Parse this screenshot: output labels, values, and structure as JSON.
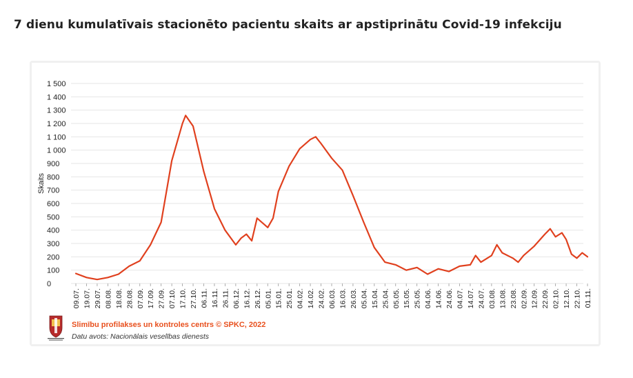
{
  "page_title": "7 dienu kumulatīvais stacionēto pacientu skaits ar apstiprinātu Covid-19 infekciju",
  "footer": {
    "org": "Slimību profilakses un kontroles centrs © SPKC, 2022",
    "source": "Datu avots: Nacionālais veselības dienests"
  },
  "colors": {
    "line": "#e0401e",
    "grid": "#e6e6e6",
    "accent": "#e8501e"
  },
  "chart_data": {
    "type": "line",
    "title": "",
    "xlabel": "",
    "ylabel": "Skaits",
    "ylim": [
      0,
      1500
    ],
    "grid": true,
    "yticks": [
      0,
      100,
      200,
      300,
      400,
      500,
      600,
      700,
      800,
      900,
      1000,
      1100,
      1200,
      1300,
      1400,
      1500
    ],
    "ytick_labels": [
      "0",
      "100",
      "200",
      "300",
      "400",
      "500",
      "600",
      "700",
      "800",
      "900",
      "1 000",
      "1 100",
      "1 200",
      "1 300",
      "1 400",
      "1 500"
    ],
    "xtick_labels": [
      "09.07.",
      "19.07.",
      "29.07.",
      "08.08.",
      "18.08.",
      "28.08.",
      "07.09.",
      "17.09.",
      "27.09.",
      "07.10.",
      "17.10.",
      "27.10.",
      "06.11.",
      "16.11.",
      "26.11.",
      "06.12.",
      "16.12.",
      "26.12.",
      "05.01.",
      "15.01.",
      "25.01.",
      "04.02.",
      "14.02.",
      "24.02.",
      "06.03.",
      "16.03.",
      "26.03.",
      "05.04.",
      "15.04.",
      "25.04.",
      "05.05.",
      "15.05.",
      "25.05.",
      "04.06.",
      "14.06.",
      "24.06.",
      "04.07.",
      "14.07.",
      "24.07.",
      "03.08.",
      "13.08.",
      "23.08.",
      "02.09.",
      "12.09.",
      "22.09.",
      "02.10.",
      "12.10.",
      "22.10.",
      "01.11."
    ],
    "series": [
      {
        "name": "",
        "x": [
          "09.07.",
          "19.07.",
          "29.07.",
          "08.08.",
          "18.08.",
          "28.08.",
          "07.09.",
          "17.09.",
          "27.09.",
          "07.10.",
          "17.10.",
          "20.10.",
          "27.10.",
          "06.11.",
          "16.11.",
          "26.11.",
          "06.12.",
          "11.12.",
          "16.12.",
          "21.12.",
          "26.12.",
          "05.01.",
          "10.01.",
          "15.01.",
          "25.01.",
          "04.02.",
          "14.02.",
          "19.02.",
          "24.02.",
          "06.03.",
          "16.03.",
          "26.03.",
          "05.04.",
          "15.04.",
          "25.04.",
          "05.05.",
          "15.05.",
          "25.05.",
          "04.06.",
          "14.06.",
          "24.06.",
          "04.07.",
          "14.07.",
          "19.07.",
          "24.07.",
          "03.08.",
          "08.08.",
          "13.08.",
          "23.08.",
          "28.08.",
          "02.09.",
          "12.09.",
          "22.09.",
          "27.09.",
          "02.10.",
          "08.10.",
          "12.10.",
          "17.10.",
          "22.10.",
          "27.10.",
          "01.11."
        ],
        "y": [
          75,
          45,
          30,
          45,
          70,
          130,
          170,
          290,
          460,
          920,
          1200,
          1260,
          1180,
          840,
          560,
          400,
          290,
          340,
          370,
          320,
          490,
          420,
          490,
          690,
          880,
          1010,
          1080,
          1100,
          1050,
          940,
          850,
          660,
          460,
          270,
          160,
          140,
          100,
          120,
          70,
          110,
          90,
          130,
          140,
          210,
          160,
          210,
          290,
          230,
          190,
          160,
          210,
          280,
          370,
          410,
          350,
          380,
          330,
          220,
          190,
          230,
          200
        ]
      }
    ]
  }
}
